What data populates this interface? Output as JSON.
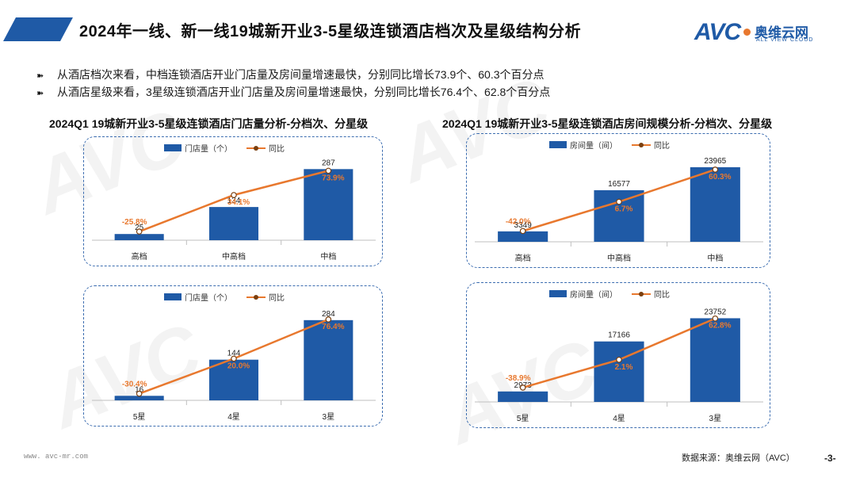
{
  "header": {
    "title": "2024年一线、新一线19城新开业3-5星级连锁酒店档次及星级结构分析"
  },
  "logo": {
    "mark": "AVC",
    "cn": "奥维云网",
    "en": "ALL VIEW CLOUD"
  },
  "bullets": [
    "从酒店档次来看，中档连锁酒店开业门店量及房间量增速最快，分别同比增长73.9个、60.3个百分点",
    "从酒店星级来看，3星级连锁酒店开业门店量及房间量增速最快，分别同比增长76.4个、62.8个百分点"
  ],
  "sections": {
    "left_title": "2024Q1 19城新开业3-5星级连锁酒店门店量分析-分档次、分星级",
    "right_title": "2024Q1 19城新开业3-5星级连锁酒店房间规模分析-分档次、分星级"
  },
  "colors": {
    "bar": "#1f5aa6",
    "line": "#e8782e",
    "label_orange": "#e8782e",
    "accent": "#1f5aa6"
  },
  "chart_data": [
    {
      "type": "bar",
      "categories": [
        "高档",
        "中高档",
        "中档"
      ],
      "series": [
        {
          "name": "门店量（个）",
          "kind": "bar",
          "values": [
            25,
            134,
            287
          ],
          "labels": [
            "25",
            "134",
            "287"
          ]
        },
        {
          "name": "同比",
          "kind": "line",
          "values": [
            -25.8,
            34.1,
            73.9
          ],
          "labels": [
            "-25.8%",
            "34.1%",
            "73.9%"
          ]
        }
      ],
      "ylim_bar": [
        0,
        320
      ],
      "ylim_line": [
        -40,
        90
      ],
      "legend": "top"
    },
    {
      "type": "bar",
      "categories": [
        "高档",
        "中高档",
        "中档"
      ],
      "series": [
        {
          "name": "房间量（间）",
          "kind": "bar",
          "values": [
            3349,
            16577,
            23965
          ],
          "labels": [
            "3349",
            "16577",
            "23965"
          ]
        },
        {
          "name": "同比",
          "kind": "line",
          "values": [
            -42.0,
            6.7,
            60.3
          ],
          "labels": [
            "-42.0%",
            "6.7%",
            "60.3%"
          ]
        }
      ],
      "ylim_bar": [
        0,
        27000
      ],
      "ylim_line": [
        -60,
        80
      ],
      "legend": "top"
    },
    {
      "type": "bar",
      "categories": [
        "5星",
        "4星",
        "3星"
      ],
      "series": [
        {
          "name": "门店量（个）",
          "kind": "bar",
          "values": [
            16,
            144,
            284
          ],
          "labels": [
            "16",
            "144",
            "284"
          ]
        },
        {
          "name": "同比",
          "kind": "line",
          "values": [
            -30.4,
            20.0,
            76.4
          ],
          "labels": [
            "-30.4%",
            "20.0%",
            "76.4%"
          ]
        }
      ],
      "ylim_bar": [
        0,
        320
      ],
      "ylim_line": [
        -40,
        90
      ],
      "legend": "top"
    },
    {
      "type": "bar",
      "categories": [
        "5星",
        "4星",
        "3星"
      ],
      "series": [
        {
          "name": "房间量（间）",
          "kind": "bar",
          "values": [
            2973,
            17166,
            23752
          ],
          "labels": [
            "2973",
            "17166",
            "23752"
          ]
        },
        {
          "name": "同比",
          "kind": "line",
          "values": [
            -38.9,
            2.1,
            62.8
          ],
          "labels": [
            "-38.9%",
            "2.1%",
            "62.8%"
          ]
        }
      ],
      "ylim_bar": [
        0,
        27000
      ],
      "ylim_line": [
        -60,
        80
      ],
      "legend": "top"
    }
  ],
  "footer": {
    "website": "www. avc-mr.com",
    "source": "数据来源：奥维云网（AVC）",
    "page": "-3-"
  }
}
